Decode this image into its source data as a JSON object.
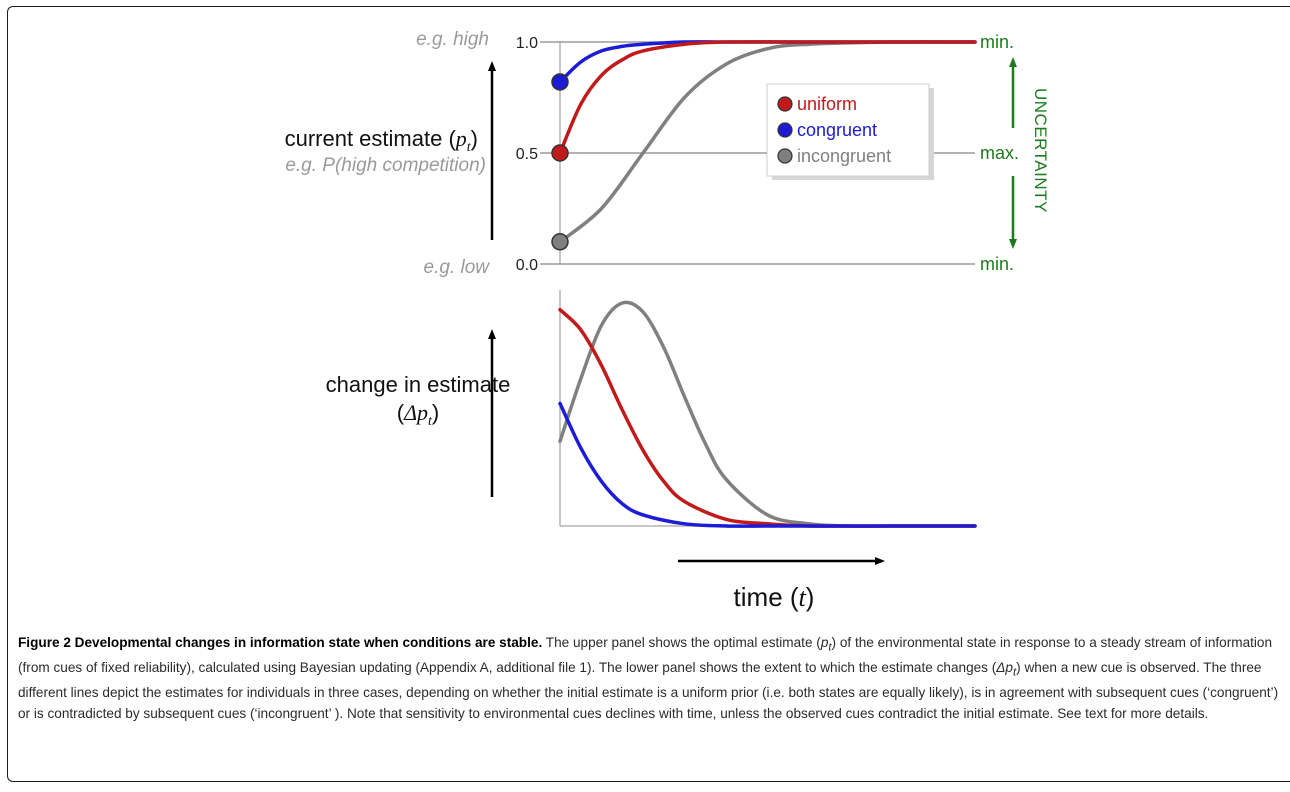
{
  "chart_data": [
    {
      "type": "line",
      "panel": "upper",
      "ylabel": "current estimate",
      "ylabel_symbol": "p",
      "ylabel_subscript": "t",
      "ylabel_example": "e.g. P(high competition)",
      "y_top_example": "e.g. high",
      "y_bottom_example": "e.g. low",
      "yticks": [
        "0.0",
        "0.5",
        "1.0"
      ],
      "ylim": [
        0,
        1
      ],
      "right_axis_label": "UNCERTAINTY",
      "right_ticks": [
        "min.",
        "max.",
        "min."
      ],
      "right_color": "#1e7a1e",
      "legend": {
        "placement": "top-right",
        "entries": [
          "uniform",
          "congruent",
          "incongruent"
        ]
      },
      "grid": false,
      "series": [
        {
          "name": "uniform",
          "color": "#c01a1a",
          "marker_color": "#c01a1a",
          "x": [
            0,
            0.5,
            1,
            1.5,
            2,
            3,
            4,
            6,
            10
          ],
          "y": [
            0.5,
            0.72,
            0.85,
            0.92,
            0.96,
            0.99,
            1.0,
            1.0,
            1.0
          ]
        },
        {
          "name": "congruent",
          "color": "#1c1cd6",
          "marker_color": "#1c1cd6",
          "x": [
            0,
            0.5,
            1,
            1.5,
            2,
            3,
            4,
            6,
            10
          ],
          "y": [
            0.82,
            0.91,
            0.96,
            0.98,
            0.99,
            1.0,
            1.0,
            1.0,
            1.0
          ]
        },
        {
          "name": "incongruent",
          "color": "#808080",
          "marker_color": "#808080",
          "x": [
            0,
            1,
            2,
            3,
            4,
            5,
            6,
            8,
            10
          ],
          "y": [
            0.1,
            0.25,
            0.5,
            0.75,
            0.9,
            0.97,
            0.99,
            1.0,
            1.0
          ]
        }
      ]
    },
    {
      "type": "line",
      "panel": "lower",
      "ylabel": "change in estimate",
      "ylabel_symbol": "Δp",
      "ylabel_subscript": "t",
      "xlabel": "time",
      "xlabel_symbol": "t",
      "grid": false,
      "series": [
        {
          "name": "uniform",
          "color": "#c01a1a",
          "x": [
            0,
            0.5,
            1,
            1.5,
            2,
            2.5,
            3,
            4,
            5,
            6,
            8,
            10
          ],
          "y": [
            0.97,
            0.88,
            0.72,
            0.52,
            0.34,
            0.2,
            0.11,
            0.03,
            0.01,
            0.0,
            0.0,
            0.0
          ]
        },
        {
          "name": "congruent",
          "color": "#1c1cd6",
          "x": [
            0,
            0.5,
            1,
            1.5,
            2,
            3,
            4,
            5,
            6,
            8,
            10
          ],
          "y": [
            0.55,
            0.35,
            0.2,
            0.1,
            0.05,
            0.01,
            0.0,
            0.0,
            0.0,
            0.0,
            0.0
          ]
        },
        {
          "name": "incongruent",
          "color": "#808080",
          "x": [
            0,
            0.5,
            1,
            1.5,
            2,
            2.5,
            3,
            3.5,
            4,
            5,
            6,
            7,
            8,
            10
          ],
          "y": [
            0.38,
            0.66,
            0.9,
            1.0,
            0.96,
            0.8,
            0.58,
            0.37,
            0.21,
            0.05,
            0.01,
            0.0,
            0.0,
            0.0
          ]
        }
      ]
    }
  ],
  "caption": {
    "title": "Figure 2 Developmental changes in information state when conditions are stable.",
    "p1": " The upper panel shows the optimal estimate (",
    "p_sym": "p",
    "p_sub": "t",
    "p2": ") of the environmental state in response to a steady stream of information (from cues of fixed reliability), calculated using Bayesian updating (Appendix A, additional file 1). The lower panel shows the extent to which the estimate changes (",
    "dp_sym": "Δp",
    "dp_sub": "t",
    "p3": ") when a new cue is observed. The three different lines depict the estimates for individuals in three cases, depending on whether the initial estimate is a uniform prior (i.e. both states are equally likely), is in agreement with subsequent cues (‘congruent’) or is contradicted by subsequent cues (‘incongruent’ ). Note that sensitivity to environmental cues declines with time, unless the observed cues contradict the initial estimate. See text for more details."
  }
}
